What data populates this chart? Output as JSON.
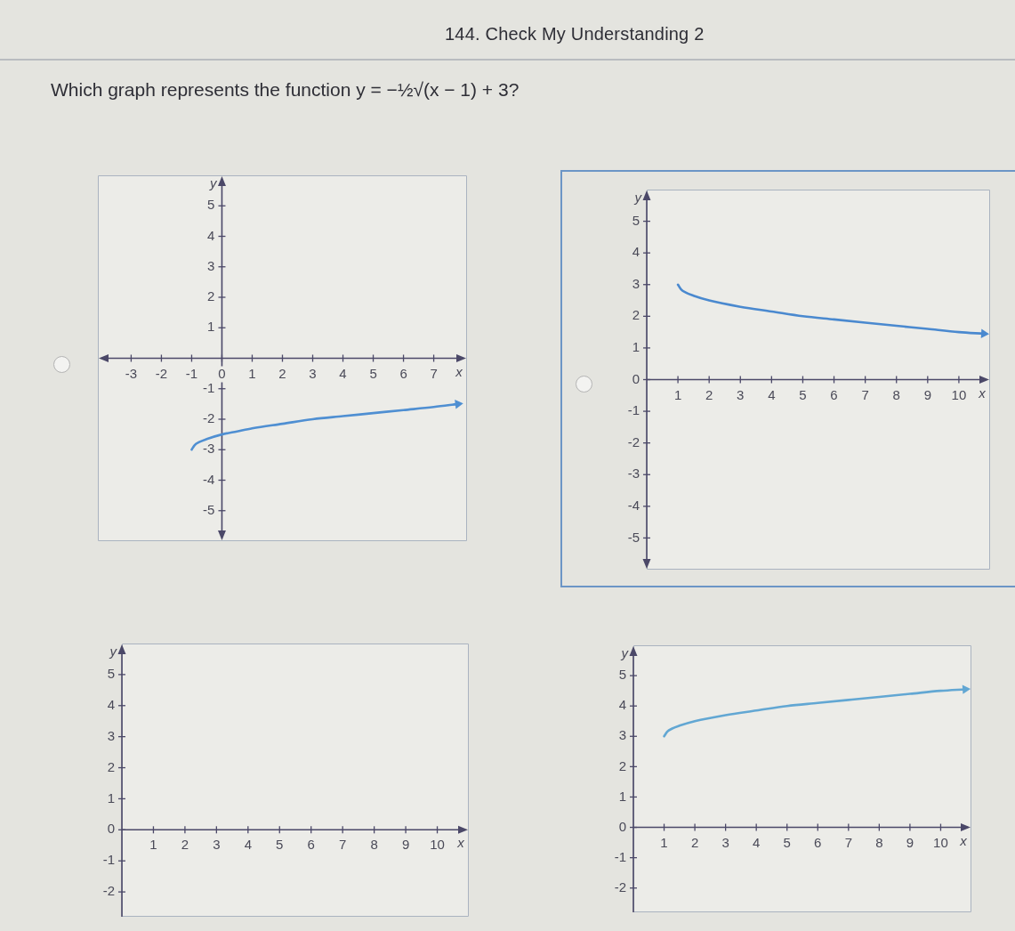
{
  "chart_data": [
    {
      "type": "other",
      "title": "144. Check My Understanding 2",
      "subtitle": "Which graph represents the function y = −½√(x − 1) + 3?"
    },
    {
      "type": "line",
      "xlabel": "x",
      "ylabel": "y",
      "xlim": [
        -4.1,
        8.1
      ],
      "ylim": [
        -6,
        6
      ],
      "xticks": [
        -3,
        -2,
        -1,
        0,
        1,
        2,
        3,
        4,
        5,
        6,
        7
      ],
      "yticks": [
        -5,
        -4,
        -3,
        -2,
        -1,
        1,
        2,
        3,
        4,
        5
      ],
      "color": "#4f8fd2",
      "x": [
        -1,
        -0.9,
        -0.75,
        -0.5,
        0,
        0.5,
        1,
        2,
        3,
        4,
        5,
        6,
        7,
        7.8
      ],
      "values": [
        -3,
        -2.85,
        -2.75,
        -2.65,
        -2.5,
        -2.4,
        -2.3,
        -2.15,
        -2,
        -1.9,
        -1.8,
        -1.7,
        -1.6,
        -1.5
      ]
    },
    {
      "type": "line",
      "xlabel": "x",
      "ylabel": "y",
      "xlim": [
        0,
        11
      ],
      "ylim": [
        -6,
        6
      ],
      "xticks": [
        1,
        2,
        3,
        4,
        5,
        6,
        7,
        8,
        9,
        10
      ],
      "yticks": [
        -5,
        -4,
        -3,
        -2,
        -1,
        0,
        1,
        2,
        3,
        4,
        5
      ],
      "color": "#4a89cf",
      "x": [
        1,
        1.1,
        1.25,
        1.5,
        2,
        3,
        4,
        5,
        6,
        7,
        8,
        9,
        10,
        10.8
      ],
      "values": [
        3,
        2.85,
        2.75,
        2.65,
        2.5,
        2.3,
        2.15,
        2,
        1.9,
        1.8,
        1.7,
        1.6,
        1.5,
        1.45
      ]
    },
    {
      "type": "line",
      "xlabel": "x",
      "ylabel": "y",
      "xlim": [
        0,
        11
      ],
      "ylim": [
        -2.8,
        6
      ],
      "xticks": [
        1,
        2,
        3,
        4,
        5,
        6,
        7,
        8,
        9,
        10
      ],
      "yticks": [
        -2,
        -1,
        0,
        1,
        2,
        3,
        4,
        5
      ]
    },
    {
      "type": "line",
      "xlabel": "x",
      "ylabel": "y",
      "xlim": [
        0,
        11
      ],
      "ylim": [
        -2.8,
        6
      ],
      "xticks": [
        1,
        2,
        3,
        4,
        5,
        6,
        7,
        8,
        9,
        10
      ],
      "yticks": [
        -2,
        -1,
        0,
        1,
        2,
        3,
        4,
        5
      ],
      "color": "#62a7d3",
      "x": [
        1,
        1.1,
        1.25,
        1.5,
        2,
        3,
        4,
        5,
        6,
        7,
        8,
        9,
        10,
        10.8
      ],
      "values": [
        3,
        3.15,
        3.25,
        3.35,
        3.5,
        3.7,
        3.85,
        4,
        4.1,
        4.2,
        4.3,
        4.4,
        4.5,
        4.55
      ]
    }
  ]
}
